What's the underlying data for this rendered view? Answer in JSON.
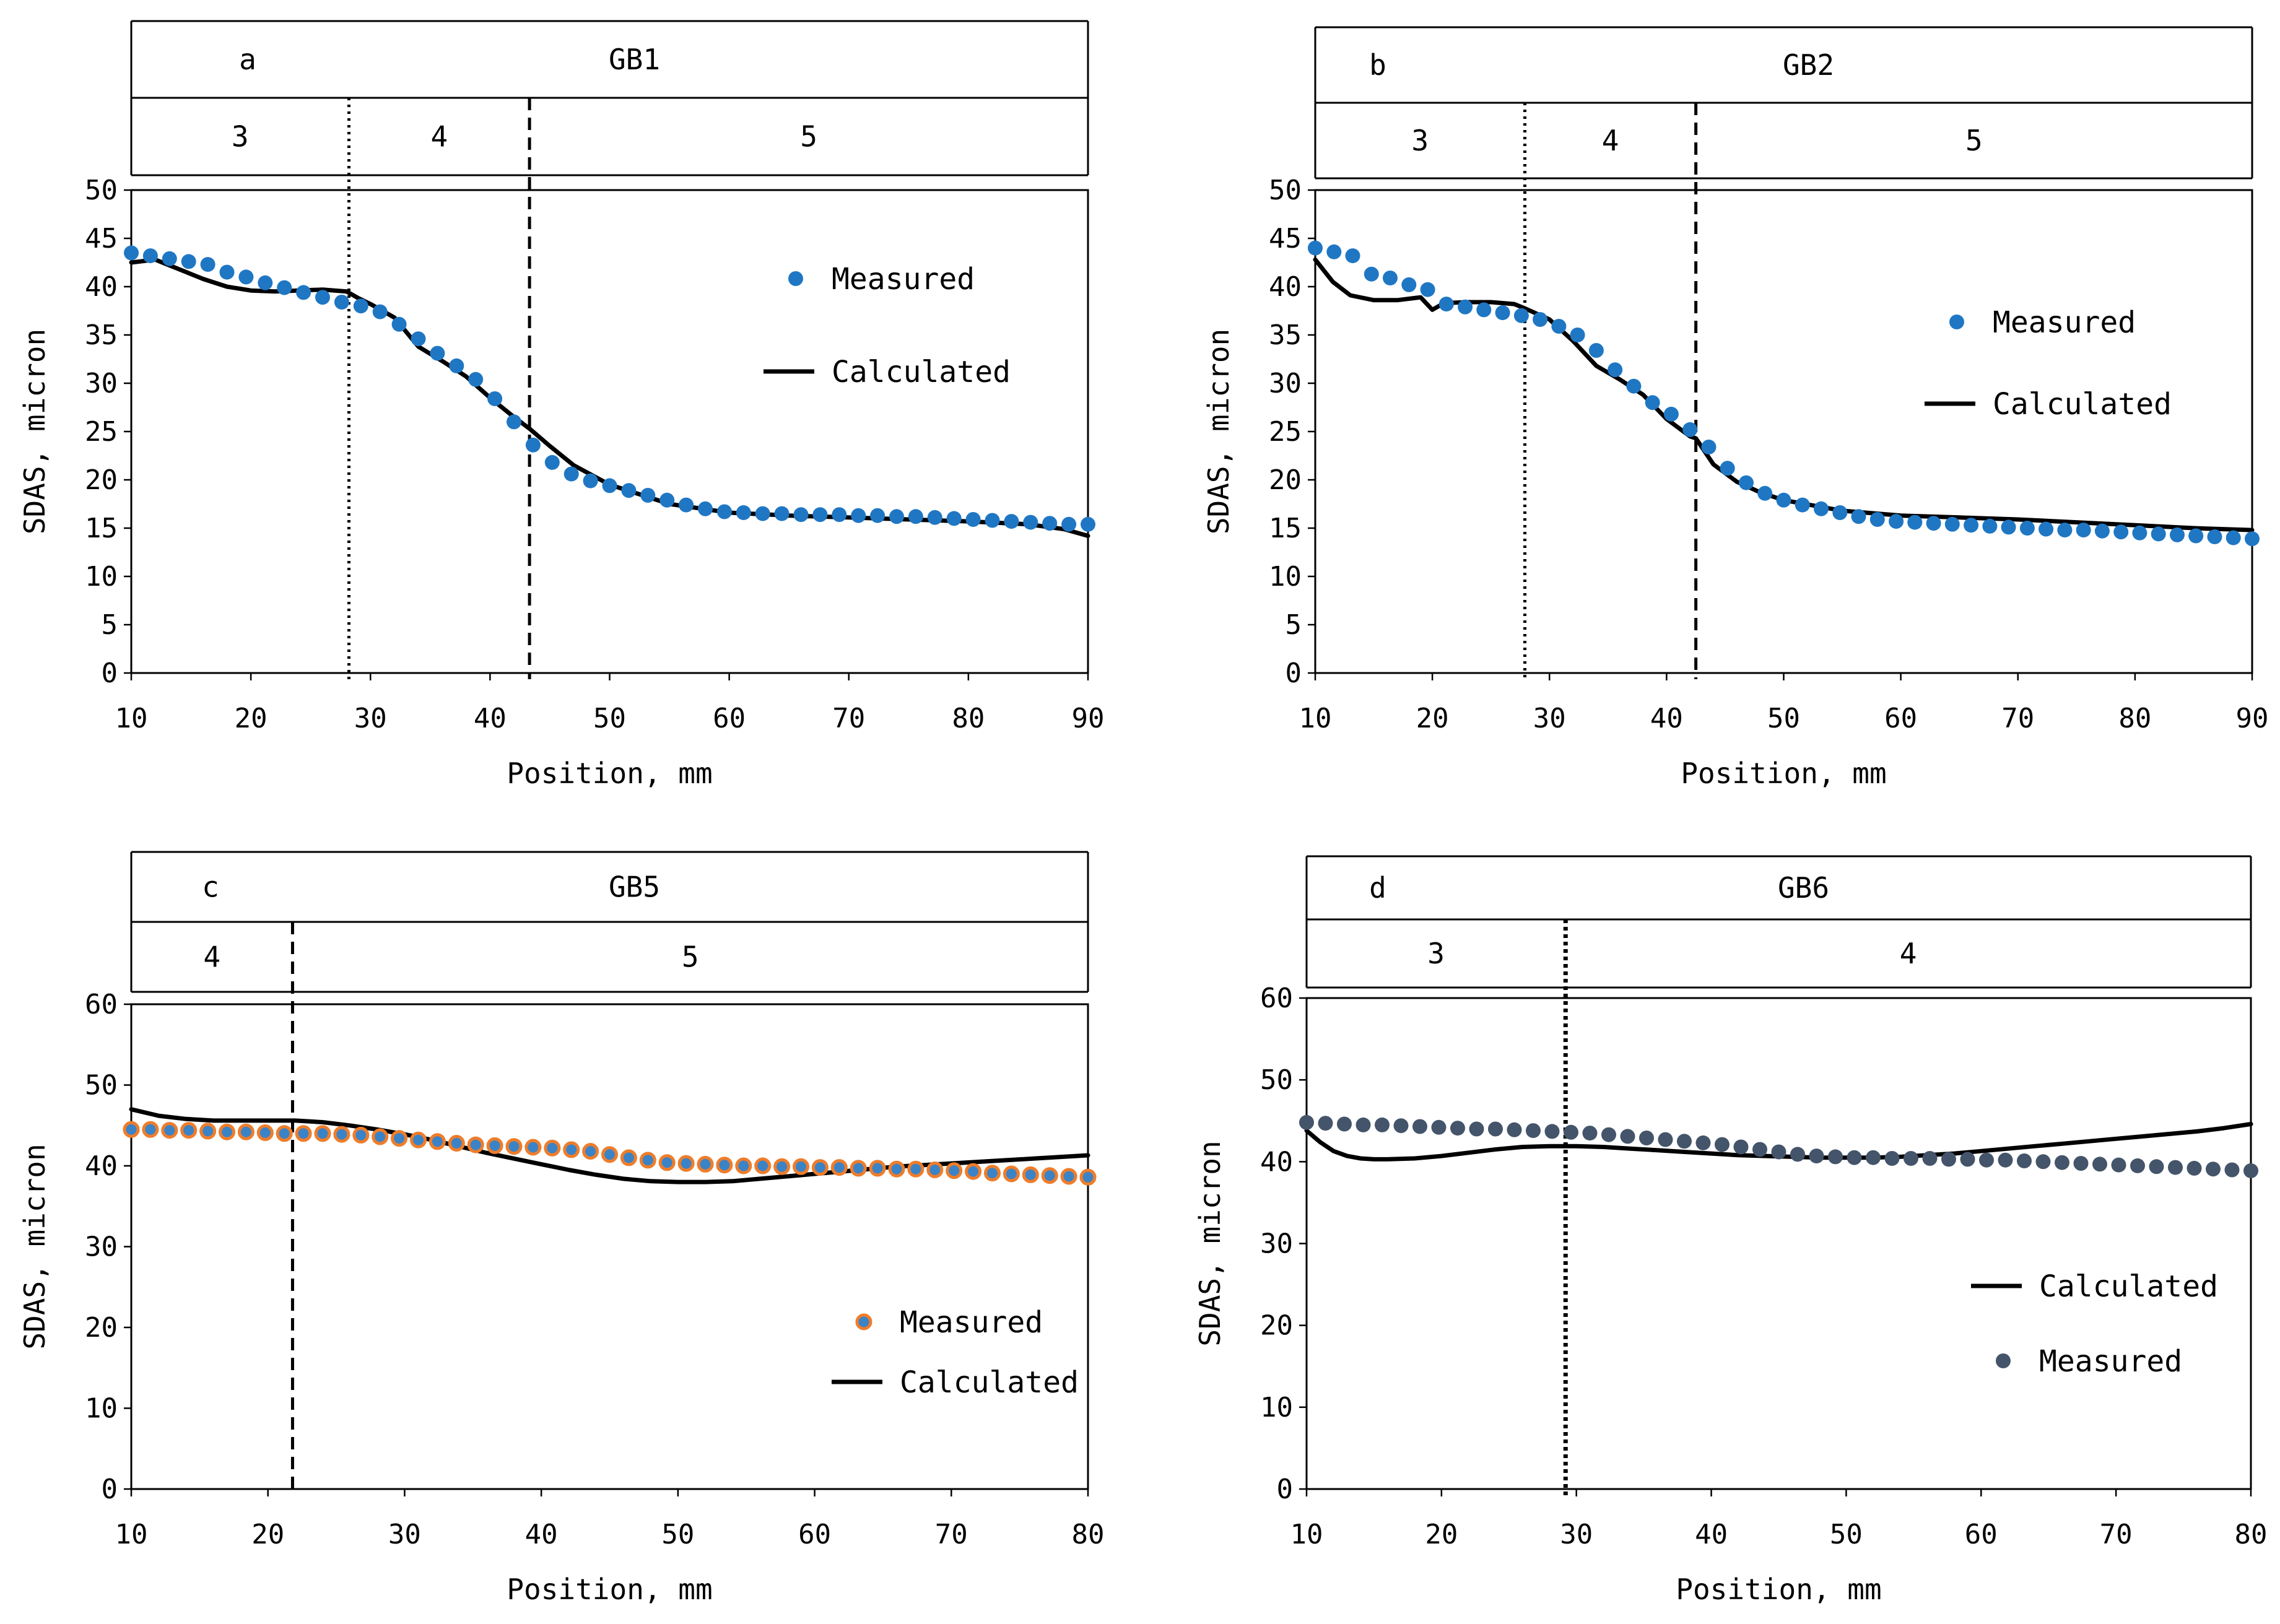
{
  "chart_data": [
    {
      "type": "scatter+line",
      "panel_letter": "a",
      "sample": "GB1",
      "zones": [
        {
          "label": "3",
          "from": 10,
          "to": 28.2
        },
        {
          "label": "4",
          "from": 28.2,
          "to": 43.3
        },
        {
          "label": "5",
          "from": 43.3,
          "to": 90
        }
      ],
      "boundaries": [
        {
          "x": 28.2,
          "style": "dotted"
        },
        {
          "x": 43.3,
          "style": "dashed"
        }
      ],
      "xlabel": "Position, mm",
      "ylabel": "SDAS, micron",
      "xlim": [
        10,
        90
      ],
      "ylim": [
        0,
        50
      ],
      "xticks": [
        10,
        20,
        30,
        40,
        50,
        60,
        70,
        80,
        90
      ],
      "yticks": [
        0,
        5,
        10,
        15,
        20,
        25,
        30,
        35,
        40,
        45,
        50
      ],
      "legend": {
        "position": "upper-right",
        "order": [
          "Measured",
          "Calculated"
        ]
      },
      "series": [
        {
          "name": "Measured",
          "kind": "scatter",
          "color": "#1f77c4",
          "edge": "#1f77c4",
          "x": [
            10,
            11.6,
            13.2,
            14.8,
            16.4,
            18,
            19.6,
            21.2,
            22.8,
            24.4,
            26,
            27.6,
            29.2,
            30.8,
            32.4,
            34,
            35.6,
            37.2,
            38.8,
            40.4,
            42,
            43.6,
            45.2,
            46.8,
            48.4,
            50,
            51.6,
            53.2,
            54.8,
            56.4,
            58,
            59.6,
            61.2,
            62.8,
            64.4,
            66,
            67.6,
            69.2,
            70.8,
            72.4,
            74,
            75.6,
            77.2,
            78.8,
            80.4,
            82,
            83.6,
            85.2,
            86.8,
            88.4,
            90
          ],
          "y": [
            43.5,
            43.2,
            42.9,
            42.6,
            42.3,
            41.5,
            41,
            40.4,
            39.9,
            39.4,
            38.9,
            38.4,
            38,
            37.4,
            36.1,
            34.6,
            33.1,
            31.8,
            30.4,
            28.4,
            26,
            23.6,
            21.8,
            20.6,
            19.9,
            19.4,
            18.9,
            18.4,
            17.9,
            17.4,
            17,
            16.7,
            16.6,
            16.5,
            16.5,
            16.4,
            16.4,
            16.4,
            16.3,
            16.3,
            16.2,
            16.2,
            16.1,
            16,
            15.9,
            15.8,
            15.7,
            15.6,
            15.5,
            15.4,
            15.4
          ]
        },
        {
          "name": "Calculated",
          "kind": "line",
          "color": "#000000",
          "x": [
            10,
            12,
            14,
            16,
            18,
            20,
            22,
            24,
            26,
            28,
            29,
            30,
            32,
            34,
            36,
            38,
            40,
            42,
            43.3,
            45,
            47,
            50,
            55,
            60,
            65,
            70,
            75,
            80,
            85,
            88,
            90
          ],
          "y": [
            42.5,
            42.8,
            41.8,
            40.8,
            40,
            39.6,
            39.5,
            39.6,
            39.7,
            39.5,
            38.8,
            38.2,
            36.8,
            33.8,
            32.3,
            30.7,
            28.5,
            26.5,
            25.3,
            23.5,
            21.5,
            19.5,
            17.5,
            16.6,
            16.3,
            16.1,
            15.9,
            15.7,
            15.4,
            14.9,
            14.2
          ]
        }
      ]
    },
    {
      "type": "scatter+line",
      "panel_letter": "b",
      "sample": "GB2",
      "zones": [
        {
          "label": "3",
          "from": 10,
          "to": 27.9
        },
        {
          "label": "4",
          "from": 27.9,
          "to": 42.5
        },
        {
          "label": "5",
          "from": 42.5,
          "to": 90
        }
      ],
      "boundaries": [
        {
          "x": 27.9,
          "style": "dotted"
        },
        {
          "x": 42.5,
          "style": "dashed"
        }
      ],
      "xlabel": "Position, mm",
      "ylabel": "SDAS, micron",
      "xlim": [
        10,
        90
      ],
      "ylim": [
        0,
        50
      ],
      "xticks": [
        10,
        20,
        30,
        40,
        50,
        60,
        70,
        80,
        90
      ],
      "yticks": [
        0,
        5,
        10,
        15,
        20,
        25,
        30,
        35,
        40,
        45,
        50
      ],
      "legend": {
        "position": "right",
        "order": [
          "Measured",
          "Calculated"
        ]
      },
      "series": [
        {
          "name": "Measured",
          "kind": "scatter",
          "color": "#1f77c4",
          "edge": "#1f77c4",
          "x": [
            10,
            11.6,
            13.2,
            14.8,
            16.4,
            18,
            19.6,
            21.2,
            22.8,
            24.4,
            26,
            27.6,
            29.2,
            30.8,
            32.4,
            34,
            35.6,
            37.2,
            38.8,
            40.4,
            42,
            43.6,
            45.2,
            46.8,
            48.4,
            50,
            51.6,
            53.2,
            54.8,
            56.4,
            58,
            59.6,
            61.2,
            62.8,
            64.4,
            66,
            67.6,
            69.2,
            70.8,
            72.4,
            74,
            75.6,
            77.2,
            78.8,
            80.4,
            82,
            83.6,
            85.2,
            86.8,
            88.4,
            90
          ],
          "y": [
            44,
            43.6,
            43.2,
            41.3,
            40.9,
            40.2,
            39.7,
            38.2,
            37.9,
            37.6,
            37.3,
            37,
            36.6,
            35.9,
            35,
            33.4,
            31.4,
            29.7,
            28,
            26.8,
            25.2,
            23.4,
            21.2,
            19.7,
            18.6,
            17.9,
            17.4,
            17,
            16.6,
            16.2,
            15.9,
            15.7,
            15.6,
            15.5,
            15.4,
            15.3,
            15.2,
            15.1,
            15,
            14.9,
            14.8,
            14.8,
            14.7,
            14.6,
            14.5,
            14.4,
            14.3,
            14.2,
            14.1,
            14,
            13.9
          ]
        },
        {
          "name": "Calculated",
          "kind": "line",
          "color": "#000000",
          "x": [
            10,
            11.5,
            13,
            15,
            17,
            19,
            20,
            21,
            23,
            25,
            27,
            28,
            30,
            32,
            34,
            36,
            38,
            40,
            42,
            42.5,
            44,
            46,
            48,
            50,
            55,
            60,
            65,
            70,
            75,
            80,
            85,
            90
          ],
          "y": [
            42.8,
            40.5,
            39.1,
            38.6,
            38.6,
            38.9,
            37.6,
            38.3,
            38.4,
            38.4,
            38.2,
            37.7,
            36.6,
            34.4,
            31.8,
            30.4,
            28.8,
            26.3,
            24.5,
            24.3,
            21.6,
            19.8,
            18.7,
            17.9,
            16.8,
            16.3,
            16.1,
            15.9,
            15.6,
            15.3,
            15,
            14.8
          ]
        }
      ]
    },
    {
      "type": "scatter+line",
      "panel_letter": "c",
      "sample": "GB5",
      "zones": [
        {
          "label": "4",
          "from": 10,
          "to": 21.8
        },
        {
          "label": "5",
          "from": 21.8,
          "to": 80
        }
      ],
      "boundaries": [
        {
          "x": 21.8,
          "style": "dashed"
        }
      ],
      "xlabel": "Position, mm",
      "ylabel": "SDAS, micron",
      "xlim": [
        10,
        80
      ],
      "ylim": [
        0,
        60
      ],
      "xticks": [
        10,
        20,
        30,
        40,
        50,
        60,
        70,
        80
      ],
      "yticks": [
        0,
        10,
        20,
        30,
        40,
        50,
        60
      ],
      "legend": {
        "position": "lower-right",
        "order": [
          "Measured",
          "Calculated"
        ]
      },
      "series": [
        {
          "name": "Measured",
          "kind": "scatter",
          "color": "#3b83c7",
          "edge": "#ee7d2b",
          "x": [
            10,
            11.4,
            12.8,
            14.2,
            15.6,
            17,
            18.4,
            19.8,
            21.2,
            22.6,
            24,
            25.4,
            26.8,
            28.2,
            29.6,
            31,
            32.4,
            33.8,
            35.2,
            36.6,
            38,
            39.4,
            40.8,
            42.2,
            43.6,
            45,
            46.4,
            47.8,
            49.2,
            50.6,
            52,
            53.4,
            54.8,
            56.2,
            57.6,
            59,
            60.4,
            61.8,
            63.2,
            64.6,
            66,
            67.4,
            68.8,
            70.2,
            71.6,
            73,
            74.4,
            75.8,
            77.2,
            78.6,
            80
          ],
          "y": [
            44.5,
            44.5,
            44.4,
            44.4,
            44.3,
            44.2,
            44.2,
            44.1,
            44,
            44,
            44,
            43.9,
            43.8,
            43.6,
            43.4,
            43.2,
            43,
            42.8,
            42.6,
            42.5,
            42.4,
            42.3,
            42.2,
            42,
            41.8,
            41.4,
            41,
            40.7,
            40.4,
            40.3,
            40.2,
            40.1,
            40,
            40,
            39.9,
            39.9,
            39.8,
            39.8,
            39.7,
            39.7,
            39.6,
            39.6,
            39.5,
            39.4,
            39.3,
            39.1,
            39,
            38.9,
            38.8,
            38.7,
            38.6
          ]
        },
        {
          "name": "Calculated",
          "kind": "line",
          "color": "#000000",
          "x": [
            10,
            12,
            14,
            16,
            18,
            20,
            22,
            24,
            26,
            28,
            30,
            32,
            34,
            36,
            38,
            40,
            42,
            44,
            46,
            48,
            50,
            52,
            54,
            56,
            58,
            60,
            62,
            64,
            66,
            68,
            70,
            72,
            74,
            76,
            78,
            80
          ],
          "y": [
            47,
            46.2,
            45.8,
            45.6,
            45.6,
            45.6,
            45.6,
            45.4,
            45,
            44.5,
            43.9,
            43.2,
            42.4,
            41.6,
            40.9,
            40.2,
            39.5,
            38.9,
            38.4,
            38.1,
            38,
            38,
            38.1,
            38.4,
            38.7,
            39,
            39.3,
            39.6,
            39.9,
            40.1,
            40.3,
            40.5,
            40.7,
            40.9,
            41.1,
            41.3
          ]
        }
      ]
    },
    {
      "type": "scatter+line",
      "panel_letter": "d",
      "sample": "GB6",
      "zones": [
        {
          "label": "3",
          "from": 10,
          "to": 29.2
        },
        {
          "label": "4",
          "from": 29.2,
          "to": 80
        }
      ],
      "boundaries": [
        {
          "x": 29.2,
          "style": "dotted-bold"
        }
      ],
      "xlabel": "Position, mm",
      "ylabel": "SDAS, micron",
      "xlim": [
        10,
        80
      ],
      "ylim": [
        0,
        60
      ],
      "xticks": [
        10,
        20,
        30,
        40,
        50,
        60,
        70,
        80
      ],
      "yticks": [
        0,
        10,
        20,
        30,
        40,
        50,
        60
      ],
      "legend": {
        "position": "lower-right",
        "order": [
          "Calculated",
          "Measured"
        ]
      },
      "series": [
        {
          "name": "Measured",
          "kind": "scatter",
          "color": "#44546a",
          "edge": "#44546a",
          "x": [
            10,
            11.4,
            12.8,
            14.2,
            15.6,
            17,
            18.4,
            19.8,
            21.2,
            22.6,
            24,
            25.4,
            26.8,
            28.2,
            29.6,
            31,
            32.4,
            33.8,
            35.2,
            36.6,
            38,
            39.4,
            40.8,
            42.2,
            43.6,
            45,
            46.4,
            47.8,
            49.2,
            50.6,
            52,
            53.4,
            54.8,
            56.2,
            57.6,
            59,
            60.4,
            61.8,
            63.2,
            64.6,
            66,
            67.4,
            68.8,
            70.2,
            71.6,
            73,
            74.4,
            75.8,
            77.2,
            78.6,
            80
          ],
          "y": [
            44.8,
            44.7,
            44.6,
            44.5,
            44.5,
            44.4,
            44.3,
            44.2,
            44.1,
            44,
            44,
            43.9,
            43.8,
            43.7,
            43.6,
            43.5,
            43.3,
            43.1,
            42.9,
            42.7,
            42.5,
            42.3,
            42.1,
            41.8,
            41.5,
            41.2,
            40.9,
            40.7,
            40.6,
            40.5,
            40.5,
            40.4,
            40.4,
            40.4,
            40.3,
            40.3,
            40.2,
            40.2,
            40.1,
            40,
            39.9,
            39.8,
            39.7,
            39.6,
            39.5,
            39.4,
            39.3,
            39.2,
            39.1,
            39,
            38.9
          ]
        },
        {
          "name": "Calculated",
          "kind": "line",
          "color": "#000000",
          "x": [
            10,
            11,
            12,
            13,
            14,
            15,
            16,
            18,
            20,
            22,
            24,
            26,
            28,
            30,
            32,
            34,
            36,
            38,
            40,
            42,
            44,
            46,
            48,
            50,
            52,
            54,
            56,
            58,
            60,
            62,
            64,
            66,
            68,
            70,
            72,
            74,
            76,
            78,
            80
          ],
          "y": [
            43.8,
            42.4,
            41.3,
            40.7,
            40.4,
            40.3,
            40.3,
            40.4,
            40.7,
            41.1,
            41.5,
            41.8,
            41.9,
            41.9,
            41.8,
            41.6,
            41.4,
            41.2,
            41,
            40.8,
            40.7,
            40.6,
            40.5,
            40.5,
            40.5,
            40.6,
            40.8,
            41,
            41.3,
            41.6,
            41.9,
            42.2,
            42.5,
            42.8,
            43.1,
            43.4,
            43.7,
            44.1,
            44.6
          ]
        }
      ]
    }
  ]
}
